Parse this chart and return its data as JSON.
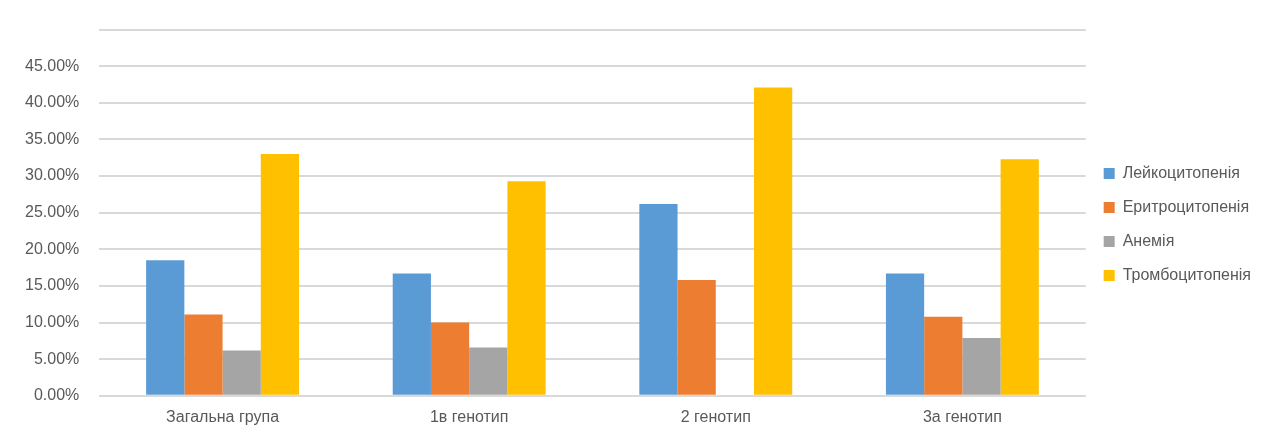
{
  "chart_data": {
    "type": "bar",
    "categories": [
      "Загальна група",
      "1в генотип",
      "2 генотип",
      "3а генотип"
    ],
    "series": [
      {
        "name": "Лейкоцитопенія",
        "color": "#5b9bd5",
        "values": [
          18.5,
          16.7,
          26.2,
          16.7
        ]
      },
      {
        "name": "Еритроцитопенія",
        "color": "#ed7d31",
        "values": [
          11.1,
          10.0,
          15.8,
          10.8
        ]
      },
      {
        "name": "Анемія",
        "color": "#a5a5a5",
        "values": [
          6.2,
          6.6,
          0,
          7.9
        ]
      },
      {
        "name": "Тромбоцитопенія",
        "color": "#ffc000",
        "values": [
          33.0,
          29.3,
          42.1,
          32.3
        ]
      }
    ],
    "ylim": [
      0,
      50
    ],
    "yticks": [
      {
        "value": 0,
        "label": "0.00%"
      },
      {
        "value": 5,
        "label": "5.00%"
      },
      {
        "value": 10,
        "label": "10.00%"
      },
      {
        "value": 15,
        "label": "15.00%"
      },
      {
        "value": 20,
        "label": "20.00%"
      },
      {
        "value": 25,
        "label": "25.00%"
      },
      {
        "value": 30,
        "label": "30.00%"
      },
      {
        "value": 35,
        "label": "35.00%"
      },
      {
        "value": 40,
        "label": "40.00%"
      },
      {
        "value": 45,
        "label": "45.00%"
      },
      {
        "value": 50,
        "label": null
      }
    ],
    "grid": "y",
    "legend": "right"
  }
}
